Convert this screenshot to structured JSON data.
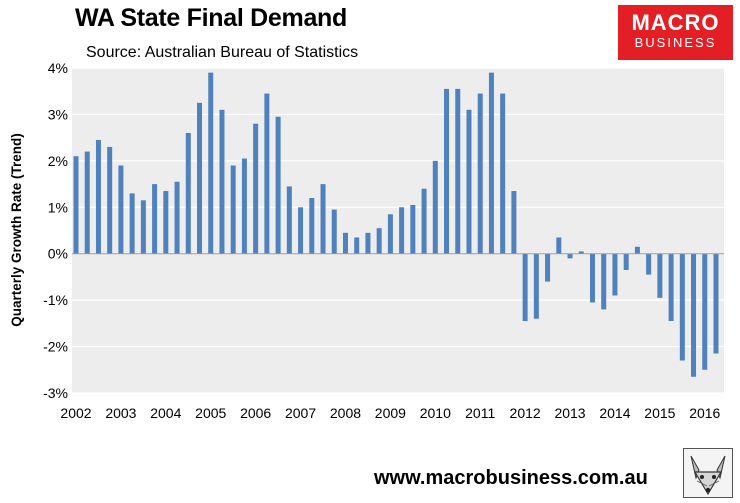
{
  "header": {
    "title": "WA State Final Demand",
    "subtitle": "Source: Australian Bureau of Statistics"
  },
  "logo": {
    "main": "MACRO",
    "sub": "BUSINESS"
  },
  "footer": {
    "website": "www.macrobusiness.com.au"
  },
  "icons": {
    "fox": "fox-mascot-icon"
  },
  "colors": {
    "bar": "#4f81bd",
    "plot_bg": "#ededed",
    "logo_bg": "#e31e24"
  },
  "chart_data": {
    "type": "bar",
    "title": "WA State Final Demand",
    "subtitle": "Source: Australian Bureau of Statistics",
    "xlabel": "",
    "ylabel": "Quarterly Growth Rate (Trend)",
    "ylim": [
      -3,
      4
    ],
    "yticks": [
      -3,
      -2,
      -1,
      0,
      1,
      2,
      3,
      4
    ],
    "ytick_labels": [
      "-3%",
      "-2%",
      "-1%",
      "0%",
      "1%",
      "2%",
      "3%",
      "4%"
    ],
    "xtick_labels": [
      "2002",
      "2003",
      "2004",
      "2005",
      "2006",
      "2007",
      "2008",
      "2009",
      "2010",
      "2011",
      "2012",
      "2013",
      "2014",
      "2015",
      "2016"
    ],
    "quarters_per_year": 4,
    "grid": "horizontal",
    "series": [
      {
        "name": "WA State Final Demand (quarterly % change, trend)",
        "values": [
          2.1,
          2.2,
          2.45,
          2.3,
          1.9,
          1.3,
          1.15,
          1.5,
          1.35,
          1.55,
          2.6,
          3.25,
          3.9,
          3.1,
          1.9,
          2.05,
          2.8,
          3.45,
          2.95,
          1.45,
          1.0,
          1.2,
          1.5,
          0.95,
          0.45,
          0.35,
          0.45,
          0.55,
          0.85,
          1.0,
          1.05,
          1.4,
          2.0,
          3.55,
          3.55,
          3.1,
          3.45,
          3.9,
          3.45,
          1.35,
          -1.45,
          -1.4,
          -0.6,
          0.35,
          -0.1,
          0.05,
          -1.05,
          -1.2,
          -0.9,
          -0.35,
          0.15,
          -0.45,
          -0.95,
          -1.45,
          -2.3,
          -2.65,
          -2.5,
          -2.15
        ]
      }
    ]
  }
}
